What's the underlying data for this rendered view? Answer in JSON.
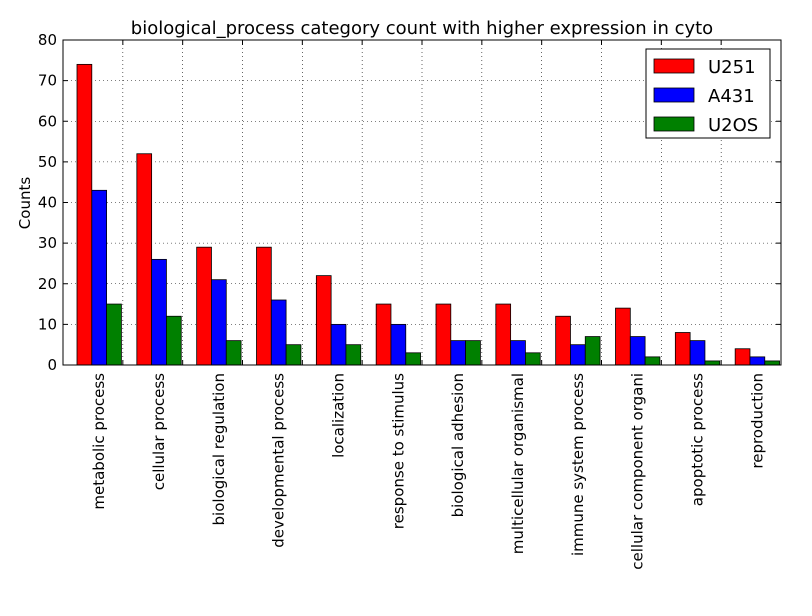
{
  "chart_data": {
    "type": "bar",
    "title": "biological_process category count with higher expression in cyto",
    "xlabel": "",
    "ylabel": "Counts",
    "ylim": [
      0,
      80
    ],
    "yticks": [
      0,
      10,
      20,
      30,
      40,
      50,
      60,
      70,
      80
    ],
    "grid": true,
    "legend_position": "top-right",
    "categories": [
      "metabolic process",
      "cellular process",
      "biological regulation",
      "developmental process",
      "localization",
      "response to stimulus",
      "biological adhesion",
      "multicellular organismal",
      "immune system process",
      "cellular component organi",
      "apoptotic process",
      "reproduction"
    ],
    "series": [
      {
        "name": "U251",
        "color": "#ff0000",
        "values": [
          74,
          52,
          29,
          29,
          22,
          15,
          15,
          15,
          12,
          14,
          8,
          4
        ]
      },
      {
        "name": "A431",
        "color": "#0000ff",
        "values": [
          43,
          26,
          21,
          16,
          10,
          10,
          6,
          6,
          5,
          7,
          6,
          2
        ]
      },
      {
        "name": "U2OS",
        "color": "#008000",
        "values": [
          15,
          12,
          6,
          5,
          5,
          3,
          6,
          3,
          7,
          2,
          1,
          1
        ]
      }
    ]
  }
}
